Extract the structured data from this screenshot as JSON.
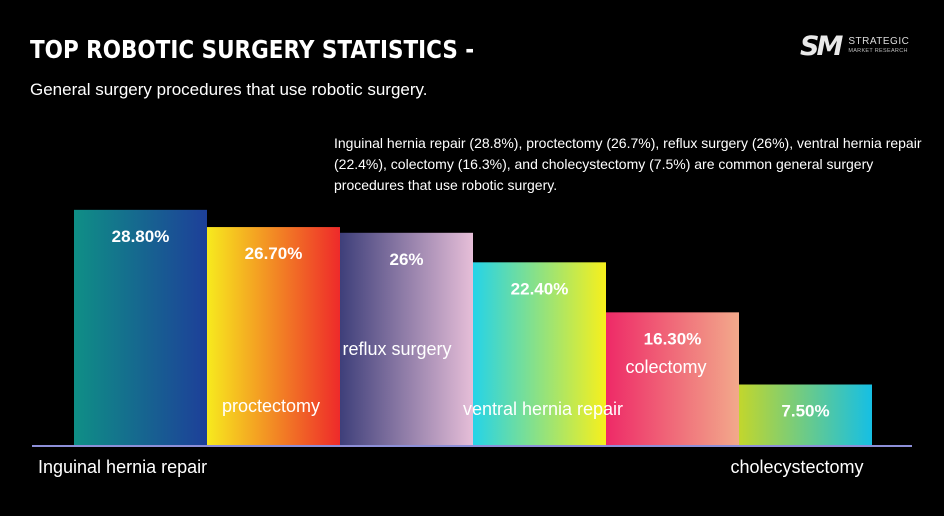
{
  "header": {
    "title": "TOP ROBOTIC SURGERY STATISTICS -",
    "subtitle": "General surgery procedures that use robotic surgery."
  },
  "logo": {
    "mark": "SM",
    "line1": "STRATEGIC",
    "line2": "MARKET RESEARCH"
  },
  "note": "Inguinal hernia repair (28.8%), proctectomy (26.7%), reflux surgery (26%), ventral hernia repair (22.4%), colectomy (16.3%), and cholecystectomy (7.5%) are common general surgery procedures that use robotic surgery.",
  "chart_data": {
    "type": "bar",
    "categories": [
      "Inguinal hernia repair",
      "proctectomy",
      "reflux surgery",
      "ventral hernia repair",
      "colectomy",
      "cholecystectomy"
    ],
    "values": [
      28.8,
      26.7,
      26,
      22.4,
      16.3,
      7.5
    ],
    "value_labels": [
      "28.80%",
      "26.70%",
      "26%",
      "22.40%",
      "16.30%",
      "7.50%"
    ],
    "ylim": [
      0,
      32
    ],
    "grid": false,
    "legend": "none",
    "gradients": [
      [
        "#0f8f86",
        "#1d3f99"
      ],
      [
        "#f7ea1e",
        "#ee2a2a"
      ],
      [
        "#3e3f7a",
        "#e6bed8"
      ],
      [
        "#25d3e8",
        "#f7f01c"
      ],
      [
        "#ee2a67",
        "#f2a98b"
      ],
      [
        "#c2d62c",
        "#16bfe4"
      ]
    ],
    "axis_color": "#8d8fd8"
  }
}
